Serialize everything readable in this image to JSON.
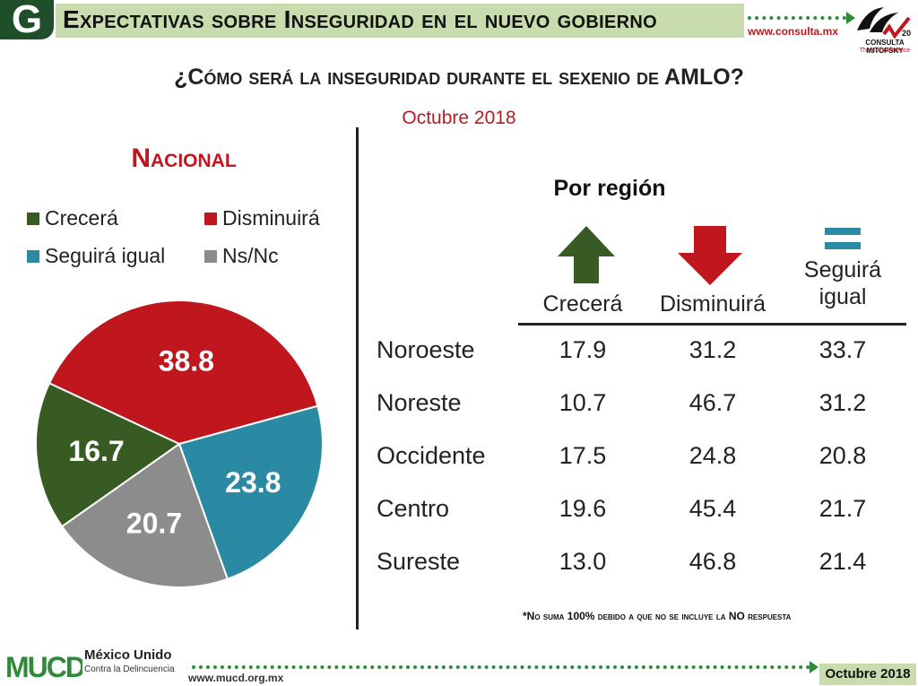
{
  "header": {
    "badge": "G",
    "title": "Expectativas sobre Inseguridad en el nuevo gobierno",
    "url": "www.consulta.mx",
    "logo_name": "CONSULTA MITOFSKY",
    "logo_tag": "The poll reference",
    "logo_anniv": "20"
  },
  "question": "¿Cómo será la inseguridad durante el sexenio de AMLO?",
  "date_subtitle": "Octubre 2018",
  "colors": {
    "crecera": "#375b23",
    "disminuira": "#c0161d",
    "seguira": "#2b8aa3",
    "nsnc": "#8c8c8c",
    "header_bg": "#c8dcae",
    "badge_bg": "#1f4e2a"
  },
  "chart_data": [
    {
      "type": "pie",
      "title": "Nacional",
      "legend": [
        "Crecerá",
        "Disminuirá",
        "Seguirá igual",
        "Ns/Nc"
      ],
      "slices": [
        {
          "label": "Disminuirá",
          "value": 38.8
        },
        {
          "label": "Seguirá igual",
          "value": 23.8
        },
        {
          "label": "Ns/Nc",
          "value": 20.7
        },
        {
          "label": "Crecerá",
          "value": 16.7
        }
      ]
    },
    {
      "type": "table",
      "title": "Por región",
      "columns": [
        "Crecerá",
        "Disminuirá",
        "Seguirá igual"
      ],
      "column_icons": [
        "up-arrow-icon",
        "down-arrow-icon",
        "equals-icon"
      ],
      "rows": [
        {
          "region": "Noroeste",
          "values": [
            "17.9",
            "31.2",
            "33.7"
          ]
        },
        {
          "region": "Noreste",
          "values": [
            "10.7",
            "46.7",
            "31.2"
          ]
        },
        {
          "region": "Occidente",
          "values": [
            "17.5",
            "24.8",
            "20.8"
          ]
        },
        {
          "region": "Centro",
          "values": [
            "19.6",
            "45.4",
            "21.7"
          ]
        },
        {
          "region": "Sureste",
          "values": [
            "13.0",
            "46.8",
            "21.4"
          ]
        }
      ]
    }
  ],
  "table_headers": {
    "crecera": "Crecerá",
    "disminuira": "Disminuirá",
    "seguira_line1": "Seguirá",
    "seguira_line2": "igual"
  },
  "note": "*No suma 100% debido a que no se incluye la  NO respuesta",
  "footer": {
    "org_logo": "MUCD",
    "org_name": "México Unido",
    "org_sub": "Contra la Delincuencia",
    "url": "www.mucd.org.mx",
    "date": "Octubre 2018"
  }
}
